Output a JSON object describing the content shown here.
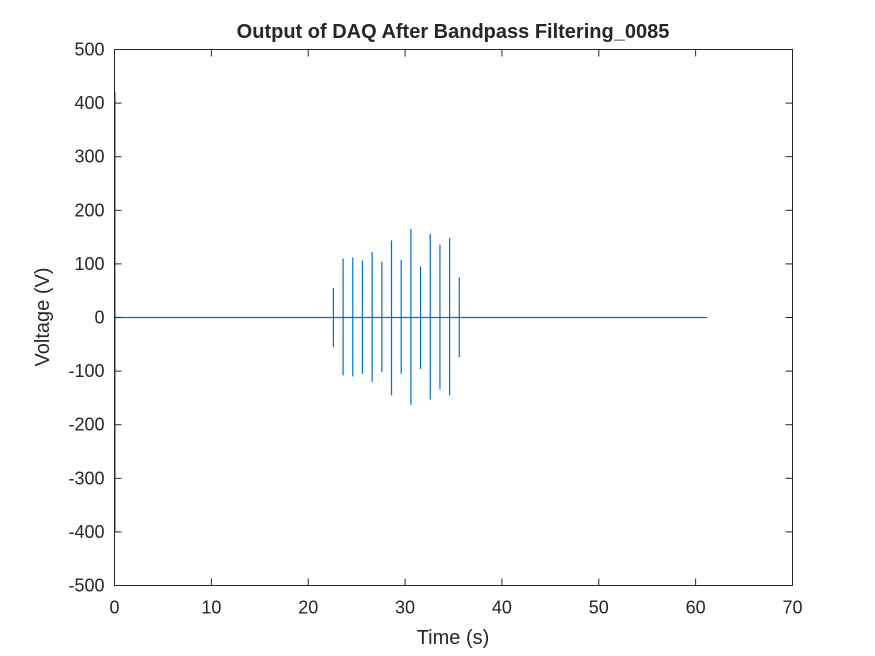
{
  "colors": {
    "series": "#0072BD",
    "axis": "#262626",
    "background": "#ffffff"
  },
  "chart_data": {
    "type": "line",
    "title": "Output of DAQ After Bandpass Filtering_0085",
    "xlabel": "Time (s)",
    "ylabel": "Voltage (V)",
    "xlim": [
      0,
      70
    ],
    "ylim": [
      -500,
      500
    ],
    "xticks": [
      "0",
      "10",
      "20",
      "30",
      "40",
      "50",
      "60",
      "70"
    ],
    "yticks": [
      "500",
      "400",
      "300",
      "200",
      "100",
      "0",
      "-100",
      "-200",
      "-300",
      "-400",
      "-500"
    ],
    "grid": false,
    "legend": "none",
    "series": [
      {
        "baseline": {
          "x": [
            0,
            61.2
          ],
          "y": [
            0,
            0
          ]
        },
        "spikes": [
          {
            "t": 0.05,
            "max": 420,
            "min": -400
          },
          {
            "t": 22.6,
            "max": 55,
            "min": -55
          },
          {
            "t": 23.6,
            "max": 110,
            "min": -108
          },
          {
            "t": 24.6,
            "max": 112,
            "min": -110
          },
          {
            "t": 25.6,
            "max": 106,
            "min": -105
          },
          {
            "t": 26.6,
            "max": 122,
            "min": -120
          },
          {
            "t": 27.6,
            "max": 104,
            "min": -102
          },
          {
            "t": 28.6,
            "max": 144,
            "min": -145
          },
          {
            "t": 29.6,
            "max": 107,
            "min": -105
          },
          {
            "t": 30.6,
            "max": 165,
            "min": -163
          },
          {
            "t": 31.6,
            "max": 95,
            "min": -96
          },
          {
            "t": 32.6,
            "max": 156,
            "min": -153
          },
          {
            "t": 33.6,
            "max": 136,
            "min": -134
          },
          {
            "t": 34.6,
            "max": 148,
            "min": -145
          },
          {
            "t": 35.6,
            "max": 75,
            "min": -74
          }
        ]
      }
    ]
  }
}
